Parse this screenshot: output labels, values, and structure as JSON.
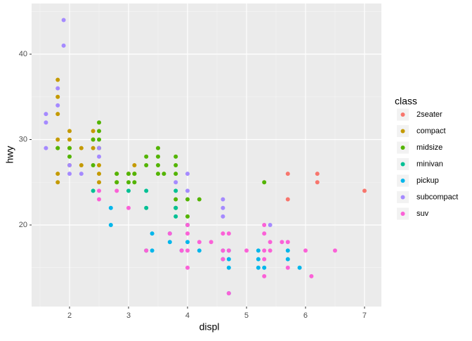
{
  "chart_data": {
    "type": "scatter",
    "x_label": "displ",
    "y_label": "hwy",
    "legend_title": "class",
    "xlim": [
      1.357,
      7.286
    ],
    "ylim": [
      10.45,
      45.93
    ],
    "xticks": [
      2,
      3,
      4,
      5,
      6,
      7
    ],
    "yticks": [
      20,
      30,
      40
    ],
    "xminorticks": [
      1.5,
      2.5,
      3.5,
      4.5,
      5.5,
      6.5
    ],
    "yminorticks": [
      15,
      25,
      35,
      45
    ],
    "grid": true,
    "legend": "right",
    "series": [
      {
        "name": "2seater",
        "color": "#F8766D",
        "x": [
          5.7,
          5.7,
          6.2,
          6.2,
          7.0
        ],
        "values": [
          26,
          23,
          26,
          25,
          24
        ]
      },
      {
        "name": "compact",
        "color": "#C49A00",
        "x": [
          1.8,
          1.8,
          1.8,
          1.8,
          1.8,
          1.8,
          1.8,
          2.0,
          2.0,
          2.0,
          2.0,
          2.2,
          2.2,
          2.4,
          2.4,
          2.4,
          2.5,
          2.5,
          2.5,
          2.5,
          2.8,
          2.8,
          3.0,
          3.1,
          3.1
        ],
        "values": [
          37,
          35,
          33,
          30,
          29,
          26,
          25,
          31,
          30,
          29,
          27,
          29,
          27,
          31,
          30,
          29,
          29,
          27,
          26,
          25,
          26,
          25,
          26,
          27,
          26
        ]
      },
      {
        "name": "midsize",
        "color": "#53B400",
        "x": [
          1.8,
          2.0,
          2.0,
          2.4,
          2.4,
          2.5,
          2.5,
          2.5,
          2.5,
          2.8,
          2.8,
          3.0,
          3.0,
          3.1,
          3.1,
          3.3,
          3.3,
          3.5,
          3.5,
          3.5,
          3.5,
          3.6,
          3.8,
          3.8,
          3.8,
          3.8,
          3.8,
          4.0,
          4.0,
          4.2,
          5.3
        ],
        "values": [
          29,
          29,
          28,
          30,
          27,
          32,
          31,
          30,
          29,
          26,
          25,
          26,
          25,
          26,
          25,
          28,
          27,
          29,
          28,
          27,
          26,
          26,
          28,
          27,
          26,
          23,
          22,
          23,
          21,
          23,
          25
        ]
      },
      {
        "name": "minivan",
        "color": "#00C094",
        "x": [
          2.4,
          3.0,
          3.3,
          3.3,
          3.3,
          3.8,
          3.8,
          3.8,
          4.0
        ],
        "values": [
          24,
          24,
          24,
          22,
          17,
          24,
          22,
          21,
          20
        ]
      },
      {
        "name": "pickup",
        "color": "#00B6EB",
        "x": [
          2.7,
          2.7,
          3.4,
          3.4,
          3.7,
          3.7,
          3.9,
          4.0,
          4.2,
          4.6,
          4.6,
          4.7,
          4.7,
          4.7,
          4.7,
          5.2,
          5.2,
          5.2,
          5.3,
          5.7,
          5.7,
          5.9
        ],
        "values": [
          22,
          20,
          19,
          17,
          19,
          18,
          17,
          18,
          17,
          17,
          16,
          17,
          16,
          15,
          12,
          17,
          16,
          15,
          15,
          17,
          16,
          15
        ]
      },
      {
        "name": "subcompact",
        "color": "#A58AFF",
        "x": [
          1.6,
          1.6,
          1.6,
          1.8,
          1.8,
          1.9,
          1.9,
          2.0,
          2.0,
          2.2,
          2.5,
          2.5,
          3.8,
          4.0,
          4.0,
          4.6,
          4.6,
          4.6,
          5.4
        ],
        "values": [
          33,
          32,
          29,
          36,
          34,
          44,
          41,
          27,
          26,
          26,
          29,
          28,
          25,
          26,
          24,
          23,
          22,
          21,
          20
        ]
      },
      {
        "name": "suv",
        "color": "#FB61D7",
        "x": [
          2.5,
          2.5,
          2.8,
          3.0,
          3.3,
          3.7,
          3.9,
          4.0,
          4.0,
          4.0,
          4.0,
          4.2,
          4.4,
          4.6,
          4.6,
          4.6,
          4.7,
          4.7,
          4.7,
          5.0,
          5.3,
          5.3,
          5.3,
          5.3,
          5.3,
          5.4,
          5.4,
          5.6,
          5.7,
          5.7,
          6.0,
          6.1,
          6.5
        ],
        "values": [
          24,
          23,
          24,
          22,
          17,
          19,
          17,
          20,
          19,
          17,
          15,
          18,
          18,
          19,
          17,
          16,
          19,
          17,
          12,
          17,
          20,
          19,
          17,
          16,
          14,
          18,
          17,
          18,
          18,
          15,
          17,
          14,
          17
        ]
      }
    ]
  }
}
